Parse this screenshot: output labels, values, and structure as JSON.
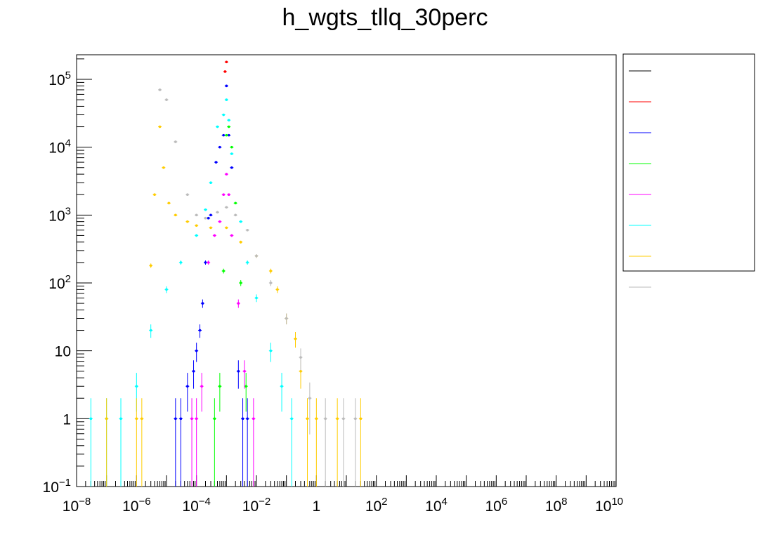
{
  "chart_data": {
    "type": "scatter",
    "title": "h_wgts_tllq_30perc",
    "xlabel": "",
    "ylabel": "",
    "x_scale": "log",
    "y_scale": "log",
    "xlim": [
      1e-08,
      10000000000.0
    ],
    "ylim": [
      0.1,
      230000
    ],
    "grid": false,
    "legend_position": "right",
    "x_tick_labels": [
      {
        "value": 1e-08,
        "base": "10",
        "exp": "−8"
      },
      {
        "value": 1e-06,
        "base": "10",
        "exp": "−6"
      },
      {
        "value": 0.0001,
        "base": "10",
        "exp": "−4"
      },
      {
        "value": 0.01,
        "base": "10",
        "exp": "−2"
      },
      {
        "value": 1,
        "base": "1",
        "exp": ""
      },
      {
        "value": 100.0,
        "base": "10",
        "exp": "2"
      },
      {
        "value": 10000.0,
        "base": "10",
        "exp": "4"
      },
      {
        "value": 1000000.0,
        "base": "10",
        "exp": "6"
      },
      {
        "value": 100000000.0,
        "base": "10",
        "exp": "8"
      },
      {
        "value": 10000000000.0,
        "base": "10",
        "exp": "10"
      }
    ],
    "y_tick_labels": [
      {
        "value": 0.1,
        "base": "10",
        "exp": "−1"
      },
      {
        "value": 1,
        "base": "1",
        "exp": ""
      },
      {
        "value": 10,
        "base": "10",
        "exp": ""
      },
      {
        "value": 100,
        "base": "10",
        "exp": "2"
      },
      {
        "value": 1000,
        "base": "10",
        "exp": "3"
      },
      {
        "value": 10000,
        "base": "10",
        "exp": "4"
      },
      {
        "value": 100000,
        "base": "10",
        "exp": "5"
      }
    ],
    "series": [
      {
        "color": "#000000",
        "points": []
      },
      {
        "color": "#ff0000",
        "points": [
          [
            0.001,
            180000
          ],
          [
            0.0009,
            130000
          ]
        ]
      },
      {
        "color": "#0000ff",
        "points": [
          [
            2e-05,
            1
          ],
          [
            3e-05,
            1
          ],
          [
            5e-05,
            3
          ],
          [
            8e-05,
            5
          ],
          [
            0.0001,
            10
          ],
          [
            0.00013,
            20
          ],
          [
            0.00016,
            50
          ],
          [
            0.0002,
            200
          ],
          [
            0.00025,
            900
          ],
          [
            0.0003,
            1000
          ],
          [
            0.00045,
            6000
          ],
          [
            0.0006,
            10000
          ],
          [
            0.0008,
            15000
          ],
          [
            0.001,
            80000
          ],
          [
            0.0012,
            15000
          ],
          [
            0.0015,
            5000
          ],
          [
            0.0025,
            5
          ],
          [
            0.0035,
            1
          ],
          [
            0.005,
            1
          ]
        ]
      },
      {
        "color": "#00ff00",
        "points": [
          [
            0.0004,
            1
          ],
          [
            0.0006,
            3
          ],
          [
            0.0008,
            150
          ],
          [
            0.001,
            15000
          ],
          [
            0.0012,
            20000
          ],
          [
            0.0015,
            10000
          ],
          [
            0.002,
            1500
          ],
          [
            0.003,
            100
          ],
          [
            0.0045,
            3
          ]
        ]
      },
      {
        "color": "#ff00ff",
        "points": [
          [
            7e-05,
            1
          ],
          [
            0.0001,
            1
          ],
          [
            0.00015,
            3
          ],
          [
            0.00025,
            200
          ],
          [
            0.0004,
            500
          ],
          [
            0.0006,
            800
          ],
          [
            0.0008,
            2000
          ],
          [
            0.001,
            4000
          ],
          [
            0.0012,
            2000
          ],
          [
            0.0015,
            500
          ],
          [
            0.0025,
            50
          ],
          [
            0.004,
            5
          ],
          [
            0.008,
            1
          ]
        ]
      },
      {
        "color": "#00ffff",
        "points": [
          [
            3e-08,
            1
          ],
          [
            1e-07,
            1
          ],
          [
            3e-07,
            1
          ],
          [
            1e-06,
            3
          ],
          [
            3e-06,
            20
          ],
          [
            1e-05,
            80
          ],
          [
            3e-05,
            200
          ],
          [
            0.0001,
            500
          ],
          [
            0.0002,
            1200
          ],
          [
            0.0003,
            3000
          ],
          [
            0.0005,
            20000
          ],
          [
            0.0008,
            30000
          ],
          [
            0.001,
            50000
          ],
          [
            0.0012,
            25000
          ],
          [
            0.0015,
            8000
          ],
          [
            0.003,
            800
          ],
          [
            0.005,
            200
          ],
          [
            0.01,
            60
          ],
          [
            0.03,
            10
          ],
          [
            0.07,
            3
          ],
          [
            0.15,
            1
          ]
        ]
      },
      {
        "color": "#ffcc00",
        "points": [
          [
            1e-07,
            1
          ],
          [
            1e-06,
            1
          ],
          [
            1.5e-06,
            1
          ],
          [
            3e-06,
            180
          ],
          [
            4e-06,
            2000
          ],
          [
            6e-06,
            20000
          ],
          [
            8e-06,
            5000
          ],
          [
            1.2e-05,
            1500
          ],
          [
            2e-05,
            1000
          ],
          [
            5e-05,
            800
          ],
          [
            0.0001,
            700
          ],
          [
            0.0003,
            650
          ],
          [
            0.001,
            650
          ],
          [
            0.003,
            400
          ],
          [
            0.01,
            250
          ],
          [
            0.03,
            150
          ],
          [
            0.05,
            80
          ],
          [
            0.1,
            30
          ],
          [
            0.2,
            15
          ],
          [
            0.3,
            5
          ],
          [
            0.5,
            1
          ],
          [
            1,
            1
          ],
          [
            5,
            1
          ],
          [
            30,
            1
          ]
        ]
      },
      {
        "color": "#bbbbbb",
        "points": [
          [
            6e-06,
            70000
          ],
          [
            1e-05,
            50000
          ],
          [
            2e-05,
            12000
          ],
          [
            5e-05,
            2000
          ],
          [
            0.0001,
            1000
          ],
          [
            0.0002,
            900
          ],
          [
            0.0005,
            1100
          ],
          [
            0.001,
            1300
          ],
          [
            0.002,
            1000
          ],
          [
            0.005,
            600
          ],
          [
            0.01,
            250
          ],
          [
            0.03,
            100
          ],
          [
            0.1,
            30
          ],
          [
            0.3,
            8
          ],
          [
            0.6,
            2
          ],
          [
            2,
            1
          ],
          [
            8,
            1
          ],
          [
            20,
            1
          ]
        ]
      }
    ]
  }
}
